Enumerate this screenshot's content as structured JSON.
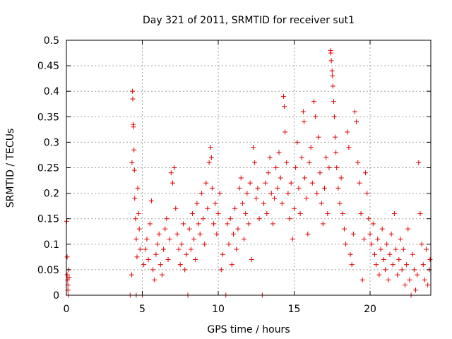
{
  "chart_data": {
    "type": "scatter",
    "title": "Day 321 of 2011, SRMTID for receiver sut1",
    "xlabel": "GPS time / hours",
    "ylabel": "SRMTID / TECUs",
    "xlim": [
      0,
      24
    ],
    "ylim": [
      0,
      0.5
    ],
    "xticks": [
      0,
      5,
      10,
      15,
      20
    ],
    "xtick_labels": [
      "0",
      "5",
      "10",
      "15",
      "20"
    ],
    "yticks": [
      0,
      0.05,
      0.1,
      0.15,
      0.2,
      0.25,
      0.3,
      0.35,
      0.4,
      0.45,
      0.5
    ],
    "ytick_labels": [
      "0",
      "0.05",
      "0.1",
      "0.15",
      "0.2",
      "0.25",
      "0.3",
      "0.35",
      "0.4",
      "0.45",
      "0.5"
    ],
    "grid": true,
    "marker": "+",
    "marker_color": "#e00000",
    "series": [
      {
        "name": "SRMTID sut1",
        "points": [
          [
            0.02,
            0.145
          ],
          [
            0.05,
            0.075
          ],
          [
            0.05,
            0.04
          ],
          [
            0.08,
            0.03
          ],
          [
            0.1,
            0.01
          ],
          [
            0.12,
            0.0
          ],
          [
            0.1,
            0.02
          ],
          [
            0.15,
            0.05
          ],
          [
            0.18,
            0.035
          ],
          [
            4.2,
            0.0
          ],
          [
            4.3,
            0.04
          ],
          [
            4.32,
            0.26
          ],
          [
            4.35,
            0.4
          ],
          [
            4.37,
            0.385
          ],
          [
            4.4,
            0.335
          ],
          [
            4.42,
            0.33
          ],
          [
            4.45,
            0.285
          ],
          [
            4.48,
            0.245
          ],
          [
            4.5,
            0.19
          ],
          [
            4.55,
            0.15
          ],
          [
            4.6,
            0.11
          ],
          [
            4.6,
            0.0
          ],
          [
            4.65,
            0.075
          ],
          [
            4.7,
            0.21
          ],
          [
            4.75,
            0.16
          ],
          [
            4.8,
            0.13
          ],
          [
            4.85,
            0.09
          ],
          [
            5.0,
            0.0
          ],
          [
            5.1,
            0.06
          ],
          [
            5.2,
            0.09
          ],
          [
            5.3,
            0.11
          ],
          [
            5.4,
            0.07
          ],
          [
            5.5,
            0.14
          ],
          [
            5.6,
            0.185
          ],
          [
            5.7,
            0.05
          ],
          [
            5.8,
            0.03
          ],
          [
            5.9,
            0.08
          ],
          [
            6.0,
            0.1
          ],
          [
            6.1,
            0.12
          ],
          [
            6.2,
            0.06
          ],
          [
            6.3,
            0.04
          ],
          [
            6.4,
            0.09
          ],
          [
            6.5,
            0.13
          ],
          [
            6.6,
            0.15
          ],
          [
            6.7,
            0.07
          ],
          [
            6.8,
            0.11
          ],
          [
            6.9,
            0.24
          ],
          [
            7.0,
            0.22
          ],
          [
            7.1,
            0.25
          ],
          [
            7.2,
            0.17
          ],
          [
            7.3,
            0.12
          ],
          [
            7.4,
            0.09
          ],
          [
            7.5,
            0.06
          ],
          [
            7.6,
            0.1
          ],
          [
            7.7,
            0.14
          ],
          [
            7.8,
            0.05
          ],
          [
            7.9,
            0.08
          ],
          [
            8.0,
            0.0
          ],
          [
            8.1,
            0.13
          ],
          [
            8.2,
            0.09
          ],
          [
            8.3,
            0.16
          ],
          [
            8.4,
            0.11
          ],
          [
            8.5,
            0.07
          ],
          [
            8.6,
            0.18
          ],
          [
            8.7,
            0.14
          ],
          [
            8.8,
            0.12
          ],
          [
            8.9,
            0.2
          ],
          [
            9.0,
            0.15
          ],
          [
            9.1,
            0.1
          ],
          [
            9.2,
            0.22
          ],
          [
            9.3,
            0.17
          ],
          [
            9.4,
            0.26
          ],
          [
            9.5,
            0.29
          ],
          [
            9.55,
            0.27
          ],
          [
            9.6,
            0.21
          ],
          [
            9.7,
            0.14
          ],
          [
            9.8,
            0.18
          ],
          [
            9.9,
            0.12
          ],
          [
            10.0,
            0.16
          ],
          [
            10.1,
            0.2
          ],
          [
            10.2,
            0.05
          ],
          [
            10.3,
            0.08
          ],
          [
            10.5,
            0.0
          ],
          [
            10.6,
            0.14
          ],
          [
            10.7,
            0.1
          ],
          [
            10.8,
            0.15
          ],
          [
            10.9,
            0.06
          ],
          [
            11.0,
            0.12
          ],
          [
            11.1,
            0.17
          ],
          [
            11.2,
            0.09
          ],
          [
            11.3,
            0.13
          ],
          [
            11.4,
            0.21
          ],
          [
            11.5,
            0.23
          ],
          [
            11.6,
            0.18
          ],
          [
            11.7,
            0.11
          ],
          [
            11.8,
            0.16
          ],
          [
            11.9,
            0.2
          ],
          [
            12.0,
            0.14
          ],
          [
            12.1,
            0.22
          ],
          [
            12.2,
            0.07
          ],
          [
            12.3,
            0.29
          ],
          [
            12.4,
            0.26
          ],
          [
            12.5,
            0.19
          ],
          [
            12.6,
            0.21
          ],
          [
            12.7,
            0.15
          ],
          [
            12.9,
            0.0
          ],
          [
            13.0,
            0.18
          ],
          [
            13.1,
            0.22
          ],
          [
            13.2,
            0.16
          ],
          [
            13.3,
            0.24
          ],
          [
            13.4,
            0.27
          ],
          [
            13.5,
            0.2
          ],
          [
            13.6,
            0.14
          ],
          [
            13.7,
            0.19
          ],
          [
            13.8,
            0.25
          ],
          [
            13.9,
            0.21
          ],
          [
            14.0,
            0.28
          ],
          [
            14.1,
            0.23
          ],
          [
            14.2,
            0.18
          ],
          [
            14.3,
            0.39
          ],
          [
            14.35,
            0.37
          ],
          [
            14.4,
            0.32
          ],
          [
            14.5,
            0.26
          ],
          [
            14.6,
            0.2
          ],
          [
            14.7,
            0.15
          ],
          [
            14.8,
            0.22
          ],
          [
            14.9,
            0.11
          ],
          [
            15.0,
            0.17
          ],
          [
            15.1,
            0.25
          ],
          [
            15.2,
            0.3
          ],
          [
            15.3,
            0.21
          ],
          [
            15.4,
            0.16
          ],
          [
            15.5,
            0.27
          ],
          [
            15.6,
            0.36
          ],
          [
            15.65,
            0.34
          ],
          [
            15.7,
            0.23
          ],
          [
            15.8,
            0.19
          ],
          [
            15.9,
            0.12
          ],
          [
            16.0,
            0.26
          ],
          [
            16.1,
            0.29
          ],
          [
            16.2,
            0.22
          ],
          [
            16.3,
            0.38
          ],
          [
            16.4,
            0.35
          ],
          [
            16.5,
            0.2
          ],
          [
            16.6,
            0.31
          ],
          [
            16.7,
            0.24
          ],
          [
            16.8,
            0.18
          ],
          [
            16.9,
            0.14
          ],
          [
            17.0,
            0.21
          ],
          [
            17.1,
            0.27
          ],
          [
            17.2,
            0.16
          ],
          [
            17.3,
            0.25
          ],
          [
            17.4,
            0.48
          ],
          [
            17.42,
            0.475
          ],
          [
            17.45,
            0.46
          ],
          [
            17.5,
            0.44
          ],
          [
            17.52,
            0.43
          ],
          [
            17.55,
            0.41
          ],
          [
            17.6,
            0.38
          ],
          [
            17.65,
            0.35
          ],
          [
            17.7,
            0.31
          ],
          [
            17.75,
            0.28
          ],
          [
            17.8,
            0.25
          ],
          [
            17.9,
            0.21
          ],
          [
            18.0,
            0.18
          ],
          [
            18.1,
            0.23
          ],
          [
            18.2,
            0.16
          ],
          [
            18.3,
            0.13
          ],
          [
            18.4,
            0.1
          ],
          [
            18.5,
            0.32
          ],
          [
            18.6,
            0.29
          ],
          [
            18.7,
            0.08
          ],
          [
            18.8,
            0.06
          ],
          [
            18.9,
            0.12
          ],
          [
            19.0,
            0.36
          ],
          [
            19.1,
            0.34
          ],
          [
            19.2,
            0.26
          ],
          [
            19.3,
            0.22
          ],
          [
            19.4,
            0.16
          ],
          [
            19.5,
            0.03
          ],
          [
            19.6,
            0.11
          ],
          [
            19.7,
            0.24
          ],
          [
            19.8,
            0.2
          ],
          [
            19.9,
            0.15
          ],
          [
            20.0,
            0.12
          ],
          [
            20.1,
            0.1
          ],
          [
            20.2,
            0.14
          ],
          [
            20.3,
            0.08
          ],
          [
            20.4,
            0.06
          ],
          [
            20.5,
            0.11
          ],
          [
            20.6,
            0.04
          ],
          [
            20.7,
            0.09
          ],
          [
            20.8,
            0.13
          ],
          [
            20.9,
            0.07
          ],
          [
            21.0,
            0.05
          ],
          [
            21.1,
            0.1
          ],
          [
            21.2,
            0.03
          ],
          [
            21.3,
            0.08
          ],
          [
            21.4,
            0.12
          ],
          [
            21.5,
            0.06
          ],
          [
            21.6,
            0.16
          ],
          [
            21.7,
            0.09
          ],
          [
            21.8,
            0.04
          ],
          [
            21.9,
            0.07
          ],
          [
            22.0,
            0.11
          ],
          [
            22.1,
            0.05
          ],
          [
            22.2,
            0.09
          ],
          [
            22.3,
            0.02
          ],
          [
            22.4,
            0.06
          ],
          [
            22.5,
            0.13
          ],
          [
            22.6,
            0.03
          ],
          [
            22.7,
            0.0
          ],
          [
            22.8,
            0.08
          ],
          [
            22.9,
            0.05
          ],
          [
            23.0,
            0.01
          ],
          [
            23.1,
            0.04
          ],
          [
            23.2,
            0.26
          ],
          [
            23.3,
            0.16
          ],
          [
            23.4,
            0.1
          ],
          [
            23.5,
            0.06
          ],
          [
            23.6,
            0.03
          ],
          [
            23.7,
            0.09
          ],
          [
            23.8,
            0.02
          ],
          [
            23.9,
            0.05
          ],
          [
            23.95,
            0.07
          ]
        ]
      }
    ]
  }
}
